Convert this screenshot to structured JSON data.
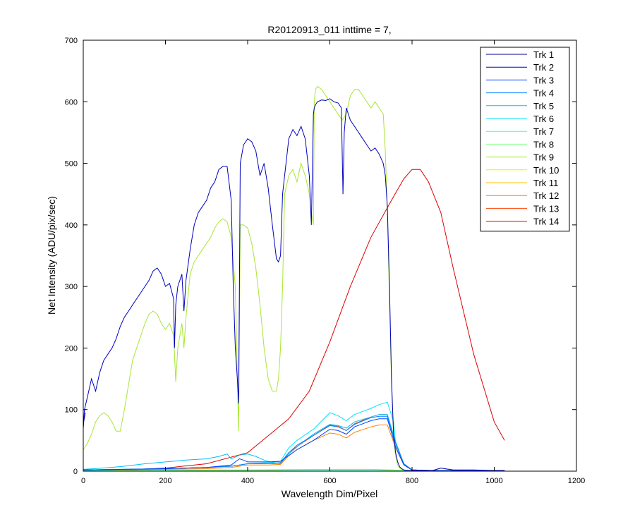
{
  "chart_data": {
    "type": "line",
    "title": "R20120913_011 inttime = 7,",
    "xlabel": "Wavelength Dim/Pixel",
    "ylabel": "Net Intensity (ADU/pix/sec)",
    "xlim": [
      0,
      1200
    ],
    "ylim": [
      0,
      700
    ],
    "xticks": [
      0,
      200,
      400,
      600,
      800,
      1000,
      1200
    ],
    "yticks": [
      0,
      100,
      200,
      300,
      400,
      500,
      600,
      700
    ],
    "grid": false,
    "legend_position": "top-right",
    "series": [
      {
        "name": "Trk 1",
        "color": "#00008F",
        "x": [
          0,
          1,
          5
        ],
        "y": [
          70,
          80,
          95
        ]
      },
      {
        "name": "Trk 2",
        "color": "#0000BF",
        "x": [
          0,
          3,
          10,
          20,
          30,
          40,
          50,
          60,
          70,
          80,
          90,
          100,
          110,
          120,
          130,
          140,
          150,
          160,
          170,
          180,
          190,
          200,
          210,
          220,
          222,
          225,
          230,
          240,
          245,
          250,
          260,
          270,
          280,
          290,
          300,
          310,
          320,
          330,
          340,
          350,
          360,
          365,
          370,
          375,
          378,
          382,
          390,
          400,
          410,
          420,
          430,
          440,
          450,
          460,
          470,
          475,
          480,
          485,
          490,
          500,
          510,
          520,
          530,
          540,
          550,
          555,
          560,
          562,
          565,
          570,
          580,
          590,
          600,
          610,
          620,
          628,
          632,
          635,
          640,
          650,
          660,
          670,
          680,
          690,
          700,
          710,
          720,
          730,
          735,
          740,
          745,
          750,
          755,
          760,
          765,
          770,
          775,
          780,
          790,
          800,
          820,
          850,
          870,
          900,
          950,
          1000,
          1025
        ],
        "y": [
          70,
          100,
          120,
          150,
          130,
          160,
          180,
          190,
          200,
          215,
          235,
          250,
          260,
          270,
          280,
          290,
          300,
          310,
          325,
          330,
          320,
          300,
          305,
          280,
          200,
          270,
          300,
          320,
          260,
          310,
          360,
          400,
          420,
          430,
          440,
          460,
          470,
          490,
          495,
          495,
          440,
          300,
          200,
          150,
          110,
          500,
          530,
          540,
          535,
          520,
          480,
          500,
          460,
          400,
          345,
          340,
          350,
          450,
          480,
          540,
          555,
          545,
          560,
          540,
          480,
          400,
          580,
          590,
          595,
          600,
          603,
          602,
          605,
          600,
          598,
          590,
          450,
          550,
          590,
          570,
          560,
          550,
          540,
          530,
          520,
          525,
          515,
          500,
          480,
          430,
          300,
          150,
          60,
          30,
          15,
          7,
          4,
          2,
          1,
          1,
          1,
          1,
          5,
          2,
          2,
          1,
          1
        ]
      },
      {
        "name": "Trk 3",
        "color": "#0040FF",
        "x": [
          0,
          100,
          200,
          300,
          360,
          380,
          390,
          400,
          450,
          480,
          520,
          560,
          600,
          620,
          640,
          660,
          700,
          720,
          740,
          760,
          780,
          800,
          850,
          1025
        ],
        "y": [
          2,
          3,
          4,
          6,
          10,
          20,
          18,
          15,
          15,
          16,
          35,
          50,
          68,
          66,
          60,
          72,
          82,
          85,
          85,
          40,
          10,
          2,
          1,
          1
        ]
      },
      {
        "name": "Trk 4",
        "color": "#0080FF",
        "x": [
          0,
          100,
          200,
          300,
          360,
          380,
          400,
          450,
          480,
          500,
          520,
          560,
          600,
          620,
          640,
          660,
          700,
          720,
          740,
          760,
          780,
          800,
          850,
          1025
        ],
        "y": [
          2,
          3,
          4,
          6,
          8,
          10,
          12,
          12,
          14,
          30,
          42,
          58,
          74,
          72,
          66,
          76,
          87,
          89,
          89,
          45,
          12,
          2,
          1,
          1
        ]
      },
      {
        "name": "Trk 5",
        "color": "#00BFFF",
        "x": [
          0,
          50,
          100,
          150,
          200,
          250,
          300,
          330,
          350,
          360,
          380,
          400,
          420,
          440,
          460,
          480,
          500,
          530,
          560,
          600,
          620,
          640,
          660,
          700,
          720,
          740,
          760,
          780,
          800,
          850,
          1025
        ],
        "y": [
          3,
          5,
          8,
          12,
          15,
          18,
          20,
          24,
          28,
          20,
          26,
          28,
          24,
          18,
          14,
          12,
          28,
          45,
          60,
          76,
          74,
          70,
          80,
          88,
          92,
          92,
          48,
          12,
          2,
          1,
          1
        ]
      },
      {
        "name": "Trk 6",
        "color": "#00E5FF",
        "x": [
          0,
          100,
          200,
          300,
          360,
          380,
          400,
          450,
          480,
          500,
          520,
          560,
          600,
          620,
          640,
          660,
          700,
          720,
          740,
          755,
          760,
          780,
          800,
          850,
          1025
        ],
        "y": [
          2,
          3,
          4,
          6,
          8,
          10,
          12,
          14,
          16,
          38,
          50,
          68,
          95,
          90,
          82,
          92,
          102,
          108,
          112,
          80,
          45,
          12,
          2,
          1,
          1
        ]
      },
      {
        "name": "Trk 7",
        "color": "#40FFBF",
        "x": [
          0,
          1025
        ],
        "y": [
          1,
          1
        ]
      },
      {
        "name": "Trk 8",
        "color": "#80FF80",
        "x": [
          0,
          1025
        ],
        "y": [
          1,
          1
        ]
      },
      {
        "name": "Trk 9",
        "color": "#A8E632",
        "x": [
          0,
          5,
          10,
          20,
          30,
          40,
          50,
          60,
          70,
          80,
          90,
          100,
          110,
          120,
          130,
          140,
          150,
          160,
          170,
          180,
          190,
          200,
          210,
          220,
          225,
          230,
          240,
          245,
          250,
          260,
          270,
          280,
          290,
          300,
          310,
          320,
          330,
          340,
          350,
          360,
          370,
          375,
          378,
          382,
          390,
          400,
          410,
          420,
          430,
          440,
          450,
          460,
          470,
          475,
          480,
          485,
          490,
          500,
          510,
          520,
          530,
          540,
          550,
          555,
          560,
          562,
          565,
          570,
          580,
          590,
          600,
          610,
          620,
          630,
          640,
          650,
          660,
          670,
          680,
          690,
          700,
          710,
          720,
          730,
          735,
          740,
          745,
          750,
          755,
          760,
          765,
          770,
          775,
          780,
          790,
          800,
          850,
          870,
          900,
          950,
          1000,
          1025
        ],
        "y": [
          35,
          40,
          45,
          60,
          80,
          90,
          95,
          90,
          80,
          65,
          65,
          100,
          140,
          180,
          200,
          220,
          240,
          255,
          260,
          255,
          240,
          230,
          240,
          220,
          145,
          200,
          240,
          200,
          250,
          320,
          340,
          350,
          360,
          370,
          380,
          395,
          405,
          410,
          405,
          380,
          300,
          150,
          65,
          400,
          400,
          395,
          370,
          330,
          270,
          200,
          150,
          130,
          130,
          150,
          200,
          300,
          450,
          480,
          490,
          470,
          500,
          480,
          450,
          420,
          400,
          600,
          620,
          625,
          620,
          610,
          600,
          590,
          580,
          570,
          580,
          610,
          620,
          620,
          610,
          600,
          590,
          600,
          590,
          580,
          520,
          420,
          280,
          140,
          55,
          25,
          10,
          5,
          3,
          2,
          1,
          1,
          1,
          5,
          2,
          1,
          1,
          1
        ]
      },
      {
        "name": "Trk 10",
        "color": "#E6F200",
        "x": [
          0,
          1025
        ],
        "y": [
          1,
          1
        ]
      },
      {
        "name": "Trk 11",
        "color": "#FFBF00",
        "x": [
          0,
          100,
          200,
          300,
          400,
          500,
          600,
          700,
          800,
          900,
          1025
        ],
        "y": [
          0.5,
          1,
          1.5,
          2,
          2,
          2.5,
          3,
          3,
          1,
          1,
          1
        ]
      },
      {
        "name": "Trk 12",
        "color": "#FF8000",
        "x": [
          0,
          100,
          200,
          300,
          360,
          380,
          400,
          450,
          480,
          500,
          520,
          560,
          600,
          620,
          640,
          660,
          700,
          720,
          740,
          760,
          780,
          800,
          850,
          1025
        ],
        "y": [
          1,
          2,
          3,
          4,
          6,
          8,
          10,
          10,
          11,
          25,
          35,
          50,
          62,
          60,
          54,
          63,
          72,
          75,
          75,
          38,
          10,
          2,
          1,
          1
        ]
      },
      {
        "name": "Trk 13",
        "color": "#FF4000",
        "x": [
          0,
          100,
          200,
          300,
          360,
          380,
          400,
          450,
          480,
          500,
          520,
          560,
          600,
          620,
          640,
          660,
          700,
          720,
          740,
          760,
          780,
          800,
          850,
          1025
        ],
        "y": [
          2,
          3,
          4,
          6,
          8,
          10,
          12,
          12,
          13,
          30,
          40,
          58,
          75,
          73,
          66,
          77,
          88,
          92,
          92,
          46,
          12,
          2,
          1,
          1
        ]
      },
      {
        "name": "Trk 14",
        "color": "#DF0000",
        "x": [
          0,
          100,
          200,
          300,
          400,
          500,
          550,
          600,
          650,
          700,
          750,
          780,
          800,
          820,
          840,
          870,
          900,
          950,
          1000,
          1025
        ],
        "y": [
          1,
          2,
          5,
          12,
          30,
          85,
          130,
          210,
          300,
          380,
          440,
          475,
          490,
          490,
          470,
          420,
          330,
          190,
          80,
          50
        ]
      }
    ]
  }
}
